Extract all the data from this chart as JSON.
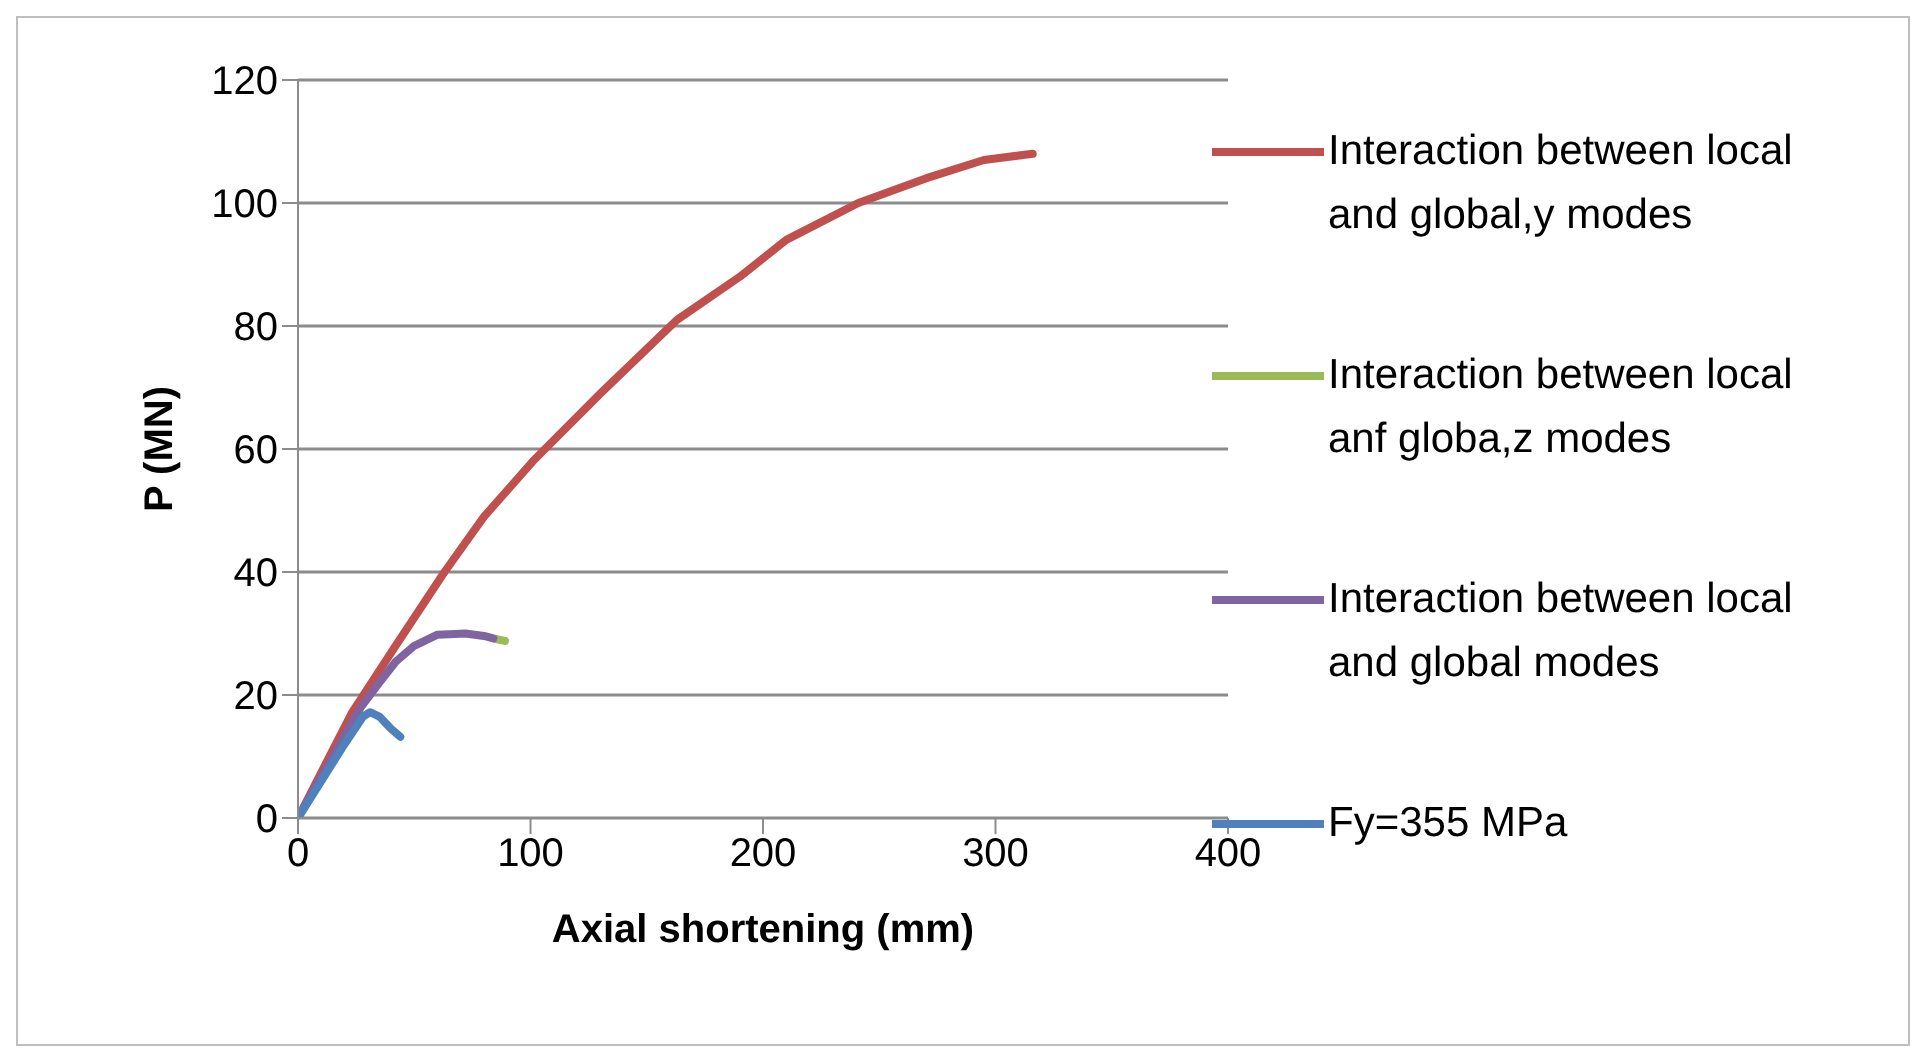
{
  "chart_data": {
    "type": "line",
    "xlabel": "Axial shortening (mm)",
    "ylabel": "P (MN)",
    "xlim": [
      0,
      400
    ],
    "xticks": [
      0,
      100,
      200,
      300,
      400
    ],
    "ylim": [
      0,
      120
    ],
    "yticks": [
      0,
      20,
      40,
      60,
      80,
      100,
      120
    ],
    "grid": "y",
    "legend": "right",
    "marker": "none",
    "line_style": "solid",
    "series": [
      {
        "name": "Interaction between local and global,y modes",
        "color": "#c0504d",
        "x": [
          0,
          23,
          42,
          63,
          80,
          101,
          130,
          163,
          190,
          210,
          241,
          270,
          295,
          316
        ],
        "values": [
          0,
          17,
          28,
          40,
          49,
          58,
          69,
          81,
          88,
          94,
          100,
          104,
          107,
          108
        ]
      },
      {
        "name": "Interaction between local anf globa,z modes",
        "color": "#9bbb59",
        "x": [
          85,
          89
        ],
        "values": [
          29.1,
          28.8
        ]
      },
      {
        "name": "Interaction between local and global modes",
        "color": "#8064a2",
        "x": [
          0,
          15,
          27,
          35,
          42,
          50,
          60,
          72,
          80,
          84
        ],
        "values": [
          0,
          10,
          18,
          22,
          25.4,
          28,
          29.8,
          30,
          29.6,
          29.2
        ]
      },
      {
        "name": "Fy=355 MPa",
        "color": "#4f81bd",
        "x": [
          0,
          10,
          20,
          28,
          31,
          35,
          40,
          44
        ],
        "values": [
          0,
          6,
          12,
          16.5,
          17.2,
          16.5,
          14.5,
          13.2
        ]
      }
    ]
  }
}
